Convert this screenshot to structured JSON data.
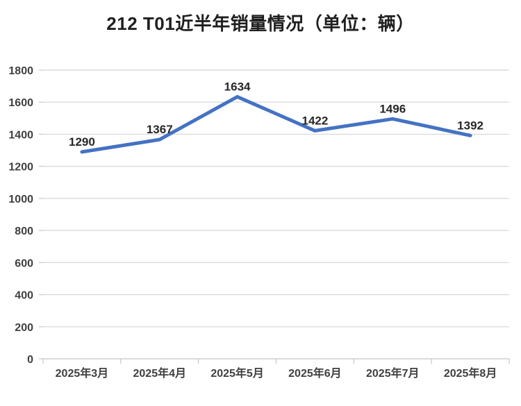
{
  "header": {
    "title": "212 T01近半年销量情况（单位：辆）"
  },
  "chart_data": {
    "type": "line",
    "title": "212 T01近半年销量情况（单位：辆）",
    "categories": [
      "2025年3月",
      "2025年4月",
      "2025年5月",
      "2025年6月",
      "2025年7月",
      "2025年8月"
    ],
    "series": [
      {
        "name": "销量",
        "values": [
          1290,
          1367,
          1634,
          1422,
          1496,
          1392
        ]
      }
    ],
    "xlabel": "",
    "ylabel": "",
    "ylim": [
      0,
      1800
    ],
    "ytick_step": 200,
    "grid": "horizontal",
    "legend_position": "none",
    "data_labels_visible": true,
    "colors": {
      "line": "#4472C4",
      "grid": "#DBDBDB",
      "axis": "#CFCFCF",
      "tick": "#C6C6C6",
      "axis_text": "#3F3F3F",
      "data_label_text": "#262626",
      "title_text": "#1F1F1F",
      "background": "#FFFFFF"
    }
  }
}
